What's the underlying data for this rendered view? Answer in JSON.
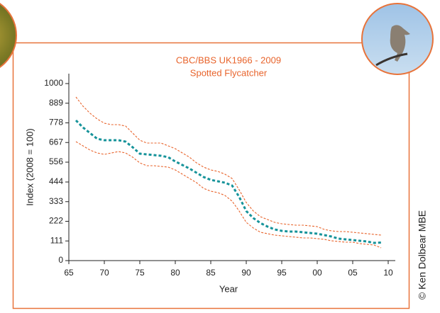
{
  "credit": "© Ken Dolbear MBE",
  "chart_data": {
    "type": "line",
    "title": "CBC/BBS UK1966 - 2009",
    "subtitle": "Spotted Flycatcher",
    "x_label": "Year",
    "y_label": "Index (2008 = 100)",
    "x": [
      1966,
      1967,
      1968,
      1969,
      1970,
      1971,
      1972,
      1973,
      1974,
      1975,
      1976,
      1977,
      1978,
      1979,
      1980,
      1981,
      1982,
      1983,
      1984,
      1985,
      1986,
      1987,
      1988,
      1989,
      1990,
      1991,
      1992,
      1993,
      1994,
      1995,
      1996,
      1997,
      1998,
      1999,
      2000,
      2001,
      2002,
      2003,
      2004,
      2005,
      2006,
      2007,
      2008,
      2009
    ],
    "series": [
      {
        "color": "#e8642c",
        "values": [
          924,
          872,
          832,
          800,
          776,
          768,
          768,
          760,
          720,
          680,
          664,
          664,
          664,
          648,
          632,
          608,
          584,
          552,
          528,
          512,
          504,
          488,
          464,
          400,
          328,
          280,
          248,
          232,
          216,
          208,
          204,
          200,
          200,
          196,
          192,
          176,
          168,
          164,
          164,
          160,
          156,
          152,
          148,
          144
        ]
      },
      {
        "color": "#e8642c",
        "values": [
          672,
          648,
          624,
          608,
          600,
          608,
          616,
          608,
          584,
          552,
          536,
          536,
          532,
          528,
          512,
          488,
          464,
          440,
          408,
          392,
          384,
          368,
          336,
          280,
          216,
          184,
          160,
          152,
          144,
          140,
          136,
          132,
          128,
          128,
          124,
          120,
          112,
          108,
          104,
          104,
          96,
          92,
          88,
          72
        ]
      },
      {
        "color": "#16939a",
        "values": [
          792,
          752,
          720,
          688,
          680,
          680,
          680,
          672,
          640,
          604,
          600,
          596,
          592,
          584,
          560,
          540,
          520,
          496,
          472,
          456,
          448,
          440,
          424,
          360,
          280,
          240,
          212,
          192,
          176,
          168,
          164,
          164,
          160,
          156,
          152,
          144,
          136,
          124,
          120,
          116,
          112,
          108,
          100,
          102
        ]
      }
    ],
    "xlim": [
      1965,
      2011
    ],
    "ylim": [
      0,
      1050
    ],
    "xticks": [
      {
        "value": 1965,
        "label": "65"
      },
      {
        "value": 1970,
        "label": "70"
      },
      {
        "value": 1975,
        "label": "75"
      },
      {
        "value": 1980,
        "label": "80"
      },
      {
        "value": 1985,
        "label": "85"
      },
      {
        "value": 1990,
        "label": "90"
      },
      {
        "value": 1995,
        "label": "95"
      },
      {
        "value": 2000,
        "label": "00"
      },
      {
        "value": 2005,
        "label": "05"
      },
      {
        "value": 2010,
        "label": "10"
      }
    ],
    "yticks": [
      0,
      111,
      222,
      333,
      444,
      556,
      667,
      778,
      889,
      1000
    ]
  }
}
